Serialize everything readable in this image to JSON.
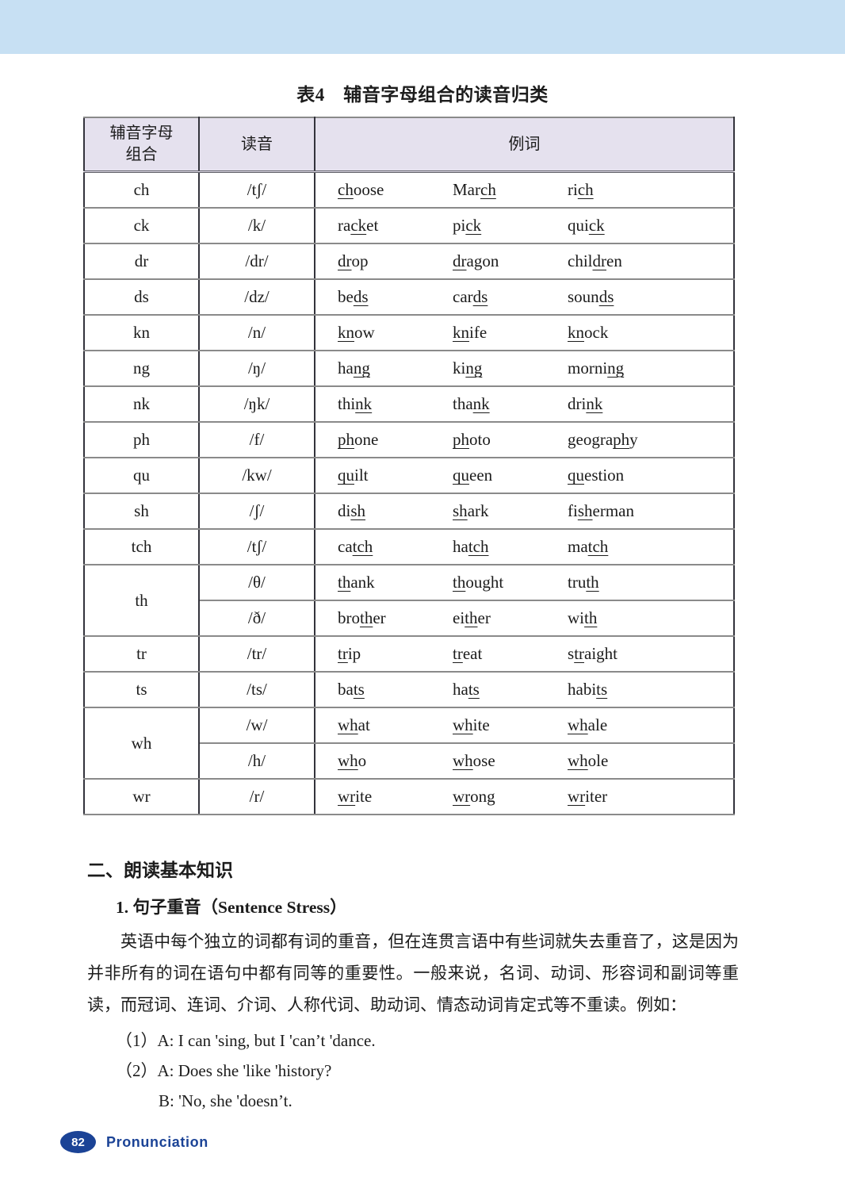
{
  "colors": {
    "top_banner": "#c7e0f3",
    "table_header_bg": "#e5e1ee",
    "accent_blue": "#1b4396"
  },
  "table": {
    "title": "表4　辅音字母组合的读音归类",
    "headers": [
      "辅音字母\n组合",
      "读音",
      "例词"
    ],
    "groups": [
      {
        "combo": "ch",
        "rows": [
          {
            "ipa": "/tʃ/",
            "words": [
              "{ch}oose",
              "Mar{ch}",
              "ri{ch}"
            ]
          }
        ]
      },
      {
        "combo": "ck",
        "rows": [
          {
            "ipa": "/k/",
            "words": [
              "ra{ck}et",
              "pi{ck}",
              "qui{ck}"
            ]
          }
        ]
      },
      {
        "combo": "dr",
        "rows": [
          {
            "ipa": "/dr/",
            "words": [
              "{dr}op",
              "{dr}agon",
              "chil{dr}en"
            ]
          }
        ]
      },
      {
        "combo": "ds",
        "rows": [
          {
            "ipa": "/dz/",
            "words": [
              "be{ds}",
              "car{ds}",
              "soun{ds}"
            ]
          }
        ]
      },
      {
        "combo": "kn",
        "rows": [
          {
            "ipa": "/n/",
            "words": [
              "{kn}ow",
              "{kn}ife",
              "{kn}ock"
            ]
          }
        ]
      },
      {
        "combo": "ng",
        "rows": [
          {
            "ipa": "/ŋ/",
            "words": [
              "ha{ng}",
              "ki{ng}",
              "morni{ng}"
            ]
          }
        ]
      },
      {
        "combo": "nk",
        "rows": [
          {
            "ipa": "/ŋk/",
            "words": [
              "thi{nk}",
              "tha{nk}",
              "dri{nk}"
            ]
          }
        ]
      },
      {
        "combo": "ph",
        "rows": [
          {
            "ipa": "/f/",
            "words": [
              "{ph}one",
              "{ph}oto",
              "geogra{ph}y"
            ]
          }
        ]
      },
      {
        "combo": "qu",
        "rows": [
          {
            "ipa": "/kw/",
            "words": [
              "{qu}ilt",
              "{qu}een",
              "{qu}estion"
            ]
          }
        ]
      },
      {
        "combo": "sh",
        "rows": [
          {
            "ipa": "/ʃ/",
            "words": [
              "di{sh}",
              "{sh}ark",
              "fi{sh}erman"
            ]
          }
        ]
      },
      {
        "combo": "tch",
        "rows": [
          {
            "ipa": "/tʃ/",
            "words": [
              "ca{tch}",
              "ha{tch}",
              "ma{tch}"
            ]
          }
        ]
      },
      {
        "combo": "th",
        "rows": [
          {
            "ipa": "/θ/",
            "words": [
              "{th}ank",
              "{th}ought",
              "tru{th}"
            ]
          },
          {
            "ipa": "/ð/",
            "words": [
              "bro{th}er",
              "ei{th}er",
              "wi{th}"
            ]
          }
        ]
      },
      {
        "combo": "tr",
        "rows": [
          {
            "ipa": "/tr/",
            "words": [
              "{tr}ip",
              "{tr}eat",
              "s{tr}aight"
            ]
          }
        ]
      },
      {
        "combo": "ts",
        "rows": [
          {
            "ipa": "/ts/",
            "words": [
              "ba{ts}",
              "ha{ts}",
              "habi{ts}"
            ]
          }
        ]
      },
      {
        "combo": "wh",
        "rows": [
          {
            "ipa": "/w/",
            "words": [
              "{wh}at",
              "{wh}ite",
              "{wh}ale"
            ]
          },
          {
            "ipa": "/h/",
            "words": [
              "{wh}o",
              "{wh}ose",
              "{wh}ole"
            ]
          }
        ]
      },
      {
        "combo": "wr",
        "rows": [
          {
            "ipa": "/r/",
            "words": [
              "{wr}ite",
              "{wr}ong",
              "{wr}iter"
            ]
          }
        ]
      }
    ]
  },
  "section": {
    "heading": "二、朗读基本知识",
    "subheading": "1. 句子重音（Sentence Stress）",
    "paragraph": "英语中每个独立的词都有词的重音，但在连贯言语中有些词就失去重音了，这是因为并非所有的词在语句中都有同等的重要性。一般来说，名词、动词、形容词和副词等重读，而冠词、连词、介词、人称代词、助动词、情态动词肯定式等不重读。例如：",
    "examples": [
      "（1）A: I can 'sing, but I 'can’t 'dance.",
      "（2）A: Does she 'like 'history?",
      "B: 'No, she 'doesn’t."
    ]
  },
  "footer": {
    "page_number": "82",
    "section_label": "Pronunciation"
  }
}
